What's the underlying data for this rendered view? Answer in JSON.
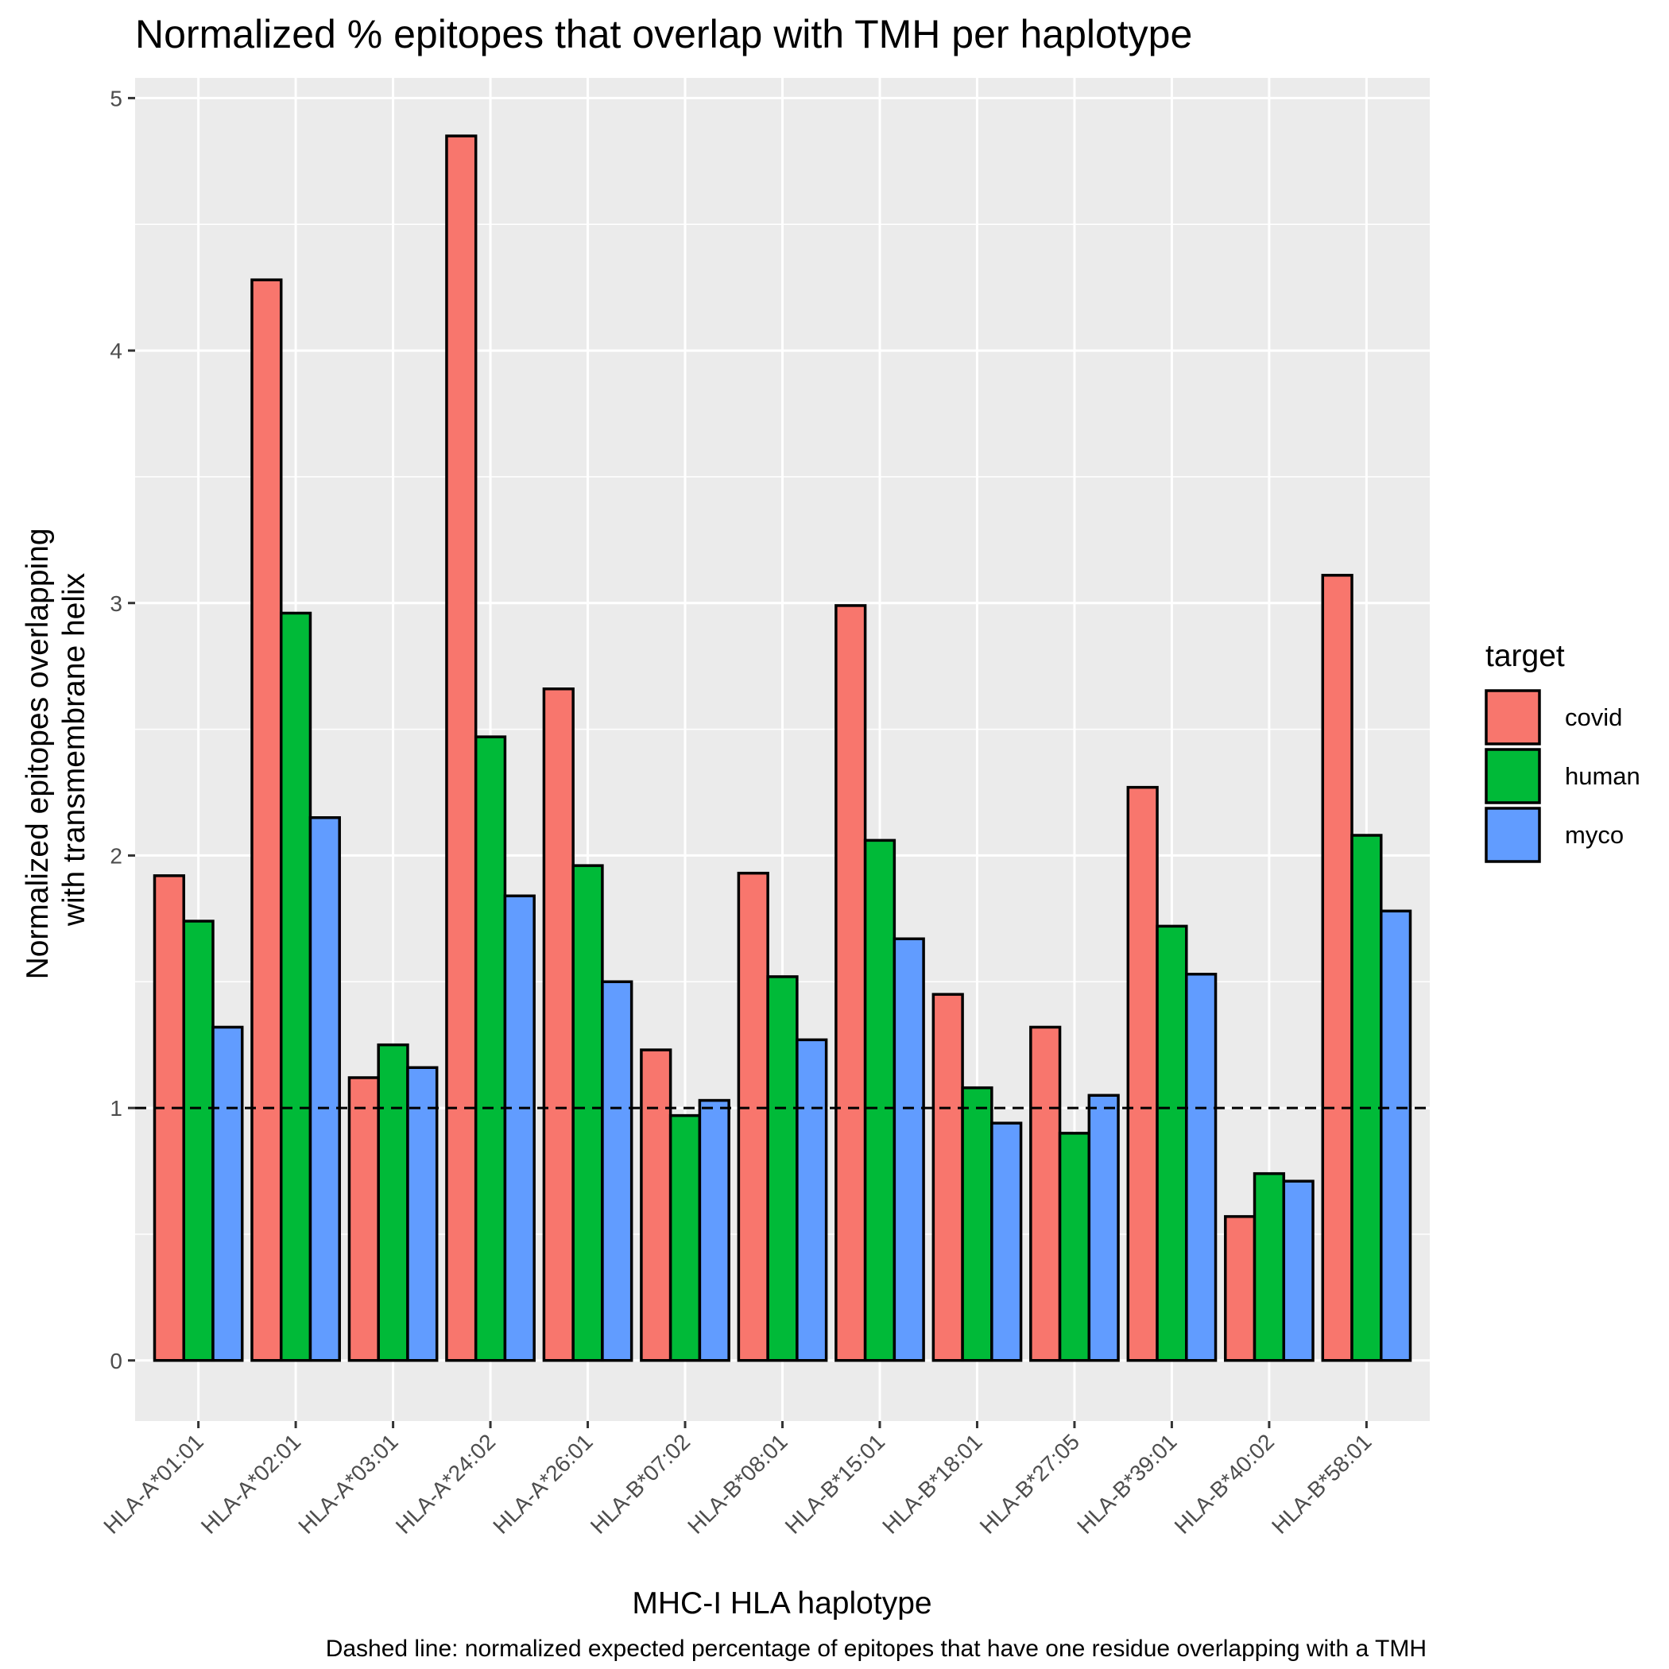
{
  "chart_data": {
    "type": "bar",
    "title": "Normalized % epitopes that overlap with TMH per haplotype",
    "xlabel": "MHC-I HLA haplotype",
    "ylabel_lines": [
      "Normalized epitopes overlapping",
      "with transmembrane helix"
    ],
    "caption": "Dashed line: normalized expected percentage of epitopes that have one residue overlapping with a TMH",
    "legend_title": "target",
    "legend_position": "right",
    "grid": true,
    "ylim": [
      -0.24,
      5.08
    ],
    "yticks": [
      "0",
      "1",
      "2",
      "3",
      "4",
      "5"
    ],
    "reference_line": 1,
    "categories": [
      "HLA-A*01:01",
      "HLA-A*02:01",
      "HLA-A*03:01",
      "HLA-A*24:02",
      "HLA-A*26:01",
      "HLA-B*07:02",
      "HLA-B*08:01",
      "HLA-B*15:01",
      "HLA-B*18:01",
      "HLA-B*27:05",
      "HLA-B*39:01",
      "HLA-B*40:02",
      "HLA-B*58:01"
    ],
    "series": [
      {
        "name": "covid",
        "color": "#F8766D",
        "values": [
          1.92,
          4.28,
          1.12,
          4.85,
          2.66,
          1.23,
          1.93,
          2.99,
          1.45,
          1.32,
          2.27,
          0.57,
          3.11
        ]
      },
      {
        "name": "human",
        "color": "#00BA38",
        "values": [
          1.74,
          2.96,
          1.25,
          2.47,
          1.96,
          0.97,
          1.52,
          2.06,
          1.08,
          0.9,
          1.72,
          0.74,
          2.08
        ]
      },
      {
        "name": "myco",
        "color": "#619CFF",
        "values": [
          1.32,
          2.15,
          1.16,
          1.84,
          1.5,
          1.03,
          1.27,
          1.67,
          0.94,
          1.05,
          1.53,
          0.71,
          1.78
        ]
      }
    ]
  }
}
